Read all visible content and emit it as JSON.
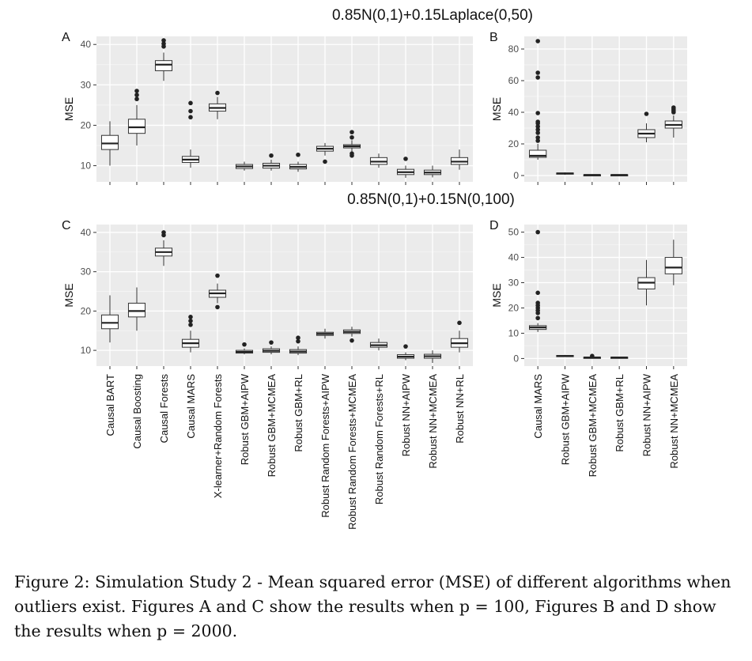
{
  "chart_data": {
    "type": "boxplot",
    "titles": {
      "top": "0.85N(0,1)+0.15Laplace(0,50)",
      "bottom": "0.85N(0,1)+0.15N(0,100)"
    },
    "ylabel": "MSE",
    "categories_p100": [
      "Causal BART",
      "Causal Boosting",
      "Causal Forests",
      "Causal MARS",
      "X-learner+Random Forests",
      "Robust GBM+AIPW",
      "Robust GBM+MCMEA",
      "Robust GBM+RL",
      "Robust Random Forests+AIPW",
      "Robust Random Forests+MCMEA",
      "Robust Random Forests+RL",
      "Robust NN+AIPW",
      "Robust NN+MCMEA",
      "Robust NN+RL"
    ],
    "categories_p2000": [
      "Causal MARS",
      "Robust GBM+AIPW",
      "Robust GBM+MCMEA",
      "Robust GBM+RL",
      "Robust NN+AIPW",
      "Robust NN+MCMEA"
    ],
    "panels": [
      {
        "label": "A",
        "categories": "p100",
        "ylim": [
          6,
          42
        ],
        "yticks": [
          10,
          20,
          30,
          40
        ],
        "boxes": [
          {
            "min": 10,
            "q1": 14,
            "med": 15.5,
            "q3": 17.5,
            "max": 21,
            "out": []
          },
          {
            "min": 15,
            "q1": 18,
            "med": 19.5,
            "q3": 21.5,
            "max": 25,
            "out": [
              26.5,
              27.5,
              28.5
            ]
          },
          {
            "min": 31,
            "q1": 33.5,
            "med": 35,
            "q3": 36,
            "max": 38,
            "out": [
              39.5,
              40.2,
              41
            ]
          },
          {
            "min": 9.5,
            "q1": 10.8,
            "med": 11.5,
            "q3": 12.3,
            "max": 14,
            "out": [
              22,
              23.5,
              25.5
            ]
          },
          {
            "min": 21.5,
            "q1": 23.5,
            "med": 24.3,
            "q3": 25.3,
            "max": 27,
            "out": [
              28
            ]
          },
          {
            "min": 8.8,
            "q1": 9.3,
            "med": 9.8,
            "q3": 10.3,
            "max": 11,
            "out": []
          },
          {
            "min": 8.8,
            "q1": 9.4,
            "med": 10,
            "q3": 10.6,
            "max": 11.5,
            "out": [
              12.5
            ]
          },
          {
            "min": 8.5,
            "q1": 9.2,
            "med": 9.7,
            "q3": 10.3,
            "max": 11,
            "out": [
              12.7
            ]
          },
          {
            "min": 12.5,
            "q1": 13.6,
            "med": 14.2,
            "q3": 14.8,
            "max": 15.6,
            "out": [
              11
            ]
          },
          {
            "min": 13.5,
            "q1": 14.4,
            "med": 14.8,
            "q3": 15.2,
            "max": 16.3,
            "out": [
              12.5,
              13,
              17,
              18.3
            ]
          },
          {
            "min": 9.5,
            "q1": 10.3,
            "med": 11,
            "q3": 12,
            "max": 13,
            "out": []
          },
          {
            "min": 7,
            "q1": 7.8,
            "med": 8.4,
            "q3": 9.1,
            "max": 10,
            "out": [
              11.7
            ]
          },
          {
            "min": 7.1,
            "q1": 7.8,
            "med": 8.3,
            "q3": 8.9,
            "max": 10,
            "out": []
          },
          {
            "min": 9,
            "q1": 10.3,
            "med": 11,
            "q3": 12,
            "max": 14,
            "out": []
          }
        ]
      },
      {
        "label": "B",
        "categories": "p2000",
        "ylim": [
          -4,
          88
        ],
        "yticks": [
          0,
          20,
          40,
          60,
          80
        ],
        "boxes": [
          {
            "min": 10,
            "q1": 11.5,
            "med": 12.5,
            "q3": 16,
            "max": 20,
            "out": [
              22,
              24,
              27,
              29,
              31,
              33,
              34,
              39.5,
              62,
              65,
              85
            ]
          },
          {
            "min": 0.5,
            "q1": 1,
            "med": 1.3,
            "q3": 1.6,
            "max": 2,
            "out": []
          },
          {
            "min": 0.1,
            "q1": 0.3,
            "med": 0.4,
            "q3": 0.5,
            "max": 0.7,
            "out": []
          },
          {
            "min": 0.1,
            "q1": 0.3,
            "med": 0.4,
            "q3": 0.5,
            "max": 0.7,
            "out": []
          },
          {
            "min": 21,
            "q1": 24,
            "med": 26.5,
            "q3": 29,
            "max": 33,
            "out": [
              39
            ]
          },
          {
            "min": 24,
            "q1": 30,
            "med": 32,
            "q3": 34.5,
            "max": 38,
            "out": [
              40,
              41,
              42,
              43
            ]
          }
        ]
      },
      {
        "label": "C",
        "categories": "p100",
        "ylim": [
          6,
          42
        ],
        "yticks": [
          10,
          20,
          30,
          40
        ],
        "boxes": [
          {
            "min": 12,
            "q1": 15.5,
            "med": 17,
            "q3": 19,
            "max": 24,
            "out": []
          },
          {
            "min": 15,
            "q1": 18.5,
            "med": 20,
            "q3": 22,
            "max": 26,
            "out": []
          },
          {
            "min": 31.5,
            "q1": 34,
            "med": 35,
            "q3": 36,
            "max": 38,
            "out": [
              39.3,
              40
            ]
          },
          {
            "min": 9.5,
            "q1": 10.8,
            "med": 11.8,
            "q3": 12.8,
            "max": 15,
            "out": [
              16.5,
              17.5,
              18.5
            ]
          },
          {
            "min": 22,
            "q1": 23.5,
            "med": 24.5,
            "q3": 25.3,
            "max": 27,
            "out": [
              21,
              29
            ]
          },
          {
            "min": 9,
            "q1": 9.3,
            "med": 9.6,
            "q3": 10,
            "max": 10.5,
            "out": [
              11.5
            ]
          },
          {
            "min": 9,
            "q1": 9.5,
            "med": 9.9,
            "q3": 10.4,
            "max": 11,
            "out": [
              12
            ]
          },
          {
            "min": 8.8,
            "q1": 9.3,
            "med": 9.7,
            "q3": 10.2,
            "max": 11,
            "out": [
              12.3,
              13.2
            ]
          },
          {
            "min": 13,
            "q1": 13.8,
            "med": 14.2,
            "q3": 14.6,
            "max": 15.5,
            "out": []
          },
          {
            "min": 13.5,
            "q1": 14.3,
            "med": 14.7,
            "q3": 15.2,
            "max": 16,
            "out": [
              12.5
            ]
          },
          {
            "min": 10,
            "q1": 10.8,
            "med": 11.3,
            "q3": 12,
            "max": 13,
            "out": []
          },
          {
            "min": 7.5,
            "q1": 8,
            "med": 8.4,
            "q3": 8.9,
            "max": 9.5,
            "out": [
              11
            ]
          },
          {
            "min": 6.8,
            "q1": 8,
            "med": 8.5,
            "q3": 9,
            "max": 10,
            "out": []
          },
          {
            "min": 9.5,
            "q1": 10.8,
            "med": 11.8,
            "q3": 13,
            "max": 15,
            "out": [
              17
            ]
          }
        ]
      },
      {
        "label": "D",
        "categories": "p2000",
        "ylim": [
          -3,
          53
        ],
        "yticks": [
          0,
          10,
          20,
          30,
          40,
          50
        ],
        "boxes": [
          {
            "min": 10.5,
            "q1": 11.5,
            "med": 12.3,
            "q3": 13,
            "max": 14,
            "out": [
              16,
              18,
              19,
              20,
              21,
              22,
              26,
              50
            ]
          },
          {
            "min": 0.6,
            "q1": 0.8,
            "med": 1,
            "q3": 1.2,
            "max": 1.4,
            "out": []
          },
          {
            "min": 0.1,
            "q1": 0.3,
            "med": 0.4,
            "q3": 0.5,
            "max": 0.7,
            "out": [
              1
            ]
          },
          {
            "min": 0.1,
            "q1": 0.3,
            "med": 0.4,
            "q3": 0.5,
            "max": 0.7,
            "out": []
          },
          {
            "min": 21,
            "q1": 27.5,
            "med": 30,
            "q3": 32,
            "max": 39,
            "out": []
          },
          {
            "min": 29,
            "q1": 33.5,
            "med": 36,
            "q3": 40,
            "max": 47,
            "out": []
          }
        ]
      }
    ]
  },
  "caption": "Figure 2: Simulation Study 2 - Mean squared error (MSE) of different algorithms when outliers exist. Figures A and C show the results when p = 100, Figures B and D show the results when p = 2000."
}
